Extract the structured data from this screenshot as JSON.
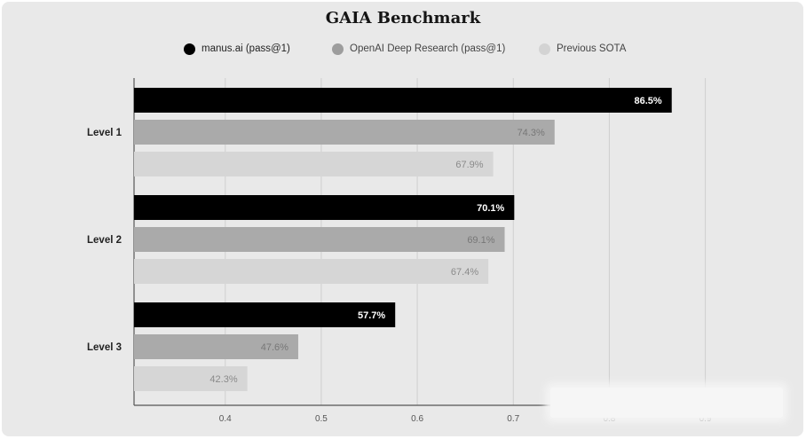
{
  "chart_data": {
    "type": "bar",
    "orientation": "horizontal",
    "title": "GAIA Benchmark",
    "categories": [
      "Level 1",
      "Level 2",
      "Level 3"
    ],
    "series": [
      {
        "name": "manus.ai (pass@1)",
        "values": [
          0.865,
          0.701,
          0.577
        ],
        "labels": [
          "86.5%",
          "70.1%",
          "57.7%"
        ],
        "color": "#000000",
        "label_color": "#ffffff"
      },
      {
        "name": "OpenAI Deep Research (pass@1)",
        "values": [
          0.743,
          0.691,
          0.476
        ],
        "labels": [
          "74.3%",
          "69.1%",
          "47.6%"
        ],
        "color": "#aaaaaa",
        "label_color": "#777777"
      },
      {
        "name": "Previous SOTA",
        "values": [
          0.679,
          0.674,
          0.423
        ],
        "labels": [
          "67.9%",
          "67.4%",
          "42.3%"
        ],
        "color": "#d6d6d6",
        "label_color": "#8a8a8a"
      }
    ],
    "xlim": [
      0.305,
      0.905
    ],
    "xticks": [
      0.4,
      0.5,
      0.6,
      0.7,
      0.8,
      0.9
    ],
    "xtick_labels": [
      "0.4",
      "0.5",
      "0.6",
      "0.7",
      "0.8",
      "0.9"
    ],
    "grid": true,
    "legend_position": "top"
  }
}
